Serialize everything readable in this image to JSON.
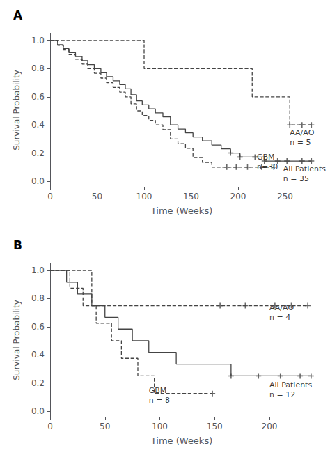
{
  "chart_data": [
    {
      "type": "step",
      "title": "A",
      "xlabel": "Time (Weeks)",
      "ylabel": "Survival Probability",
      "xlim": [
        0,
        280
      ],
      "ylim": [
        -0.04,
        1.05
      ],
      "xticks": [
        0,
        50,
        100,
        150,
        200,
        250
      ],
      "yticks": [
        {
          "value": 0,
          "label": "0.0"
        },
        0.2,
        0.4,
        0.6,
        0.8,
        {
          "value": 1,
          "label": "1.0"
        }
      ],
      "grid": false,
      "series": [
        {
          "color": "#444444",
          "line_style": "solid",
          "marker": "+",
          "x": [
            0,
            8,
            14,
            20,
            27,
            34,
            40,
            47,
            54,
            60,
            67,
            74,
            80,
            86,
            92,
            98,
            105,
            112,
            120,
            128,
            136,
            144,
            152,
            162,
            172,
            182,
            192,
            202,
            218,
            228,
            242,
            252,
            268,
            278
          ],
          "values": [
            1.0,
            0.971,
            0.943,
            0.914,
            0.886,
            0.857,
            0.829,
            0.8,
            0.771,
            0.743,
            0.714,
            0.686,
            0.657,
            0.614,
            0.571,
            0.543,
            0.514,
            0.486,
            0.457,
            0.4,
            0.371,
            0.343,
            0.314,
            0.286,
            0.257,
            0.229,
            0.2,
            0.171,
            0.171,
            0.143,
            0.143,
            0.143,
            0.143,
            0.143
          ],
          "censored": {
            "x": [
              192,
              202,
              218,
              228,
              242,
              252,
              268,
              278
            ],
            "y": [
              0.2,
              0.171,
              0.171,
              0.143,
              0.143,
              0.143,
              0.143,
              0.143
            ]
          }
        },
        {
          "color": "#444444",
          "line_style": "dashed",
          "marker": "+",
          "x": [
            0,
            8,
            14,
            20,
            27,
            34,
            40,
            47,
            54,
            60,
            67,
            74,
            80,
            86,
            92,
            98,
            105,
            112,
            120,
            128,
            136,
            144,
            152,
            162,
            172,
            182,
            188,
            198,
            210,
            225,
            238
          ],
          "values": [
            1.0,
            0.967,
            0.933,
            0.9,
            0.867,
            0.833,
            0.8,
            0.767,
            0.733,
            0.7,
            0.667,
            0.633,
            0.6,
            0.55,
            0.5,
            0.467,
            0.433,
            0.4,
            0.367,
            0.3,
            0.267,
            0.233,
            0.167,
            0.133,
            0.1,
            0.1,
            0.1,
            0.1,
            0.1,
            0.1,
            0.1
          ],
          "censored": {
            "x": [
              188,
              198,
              210,
              225,
              238
            ],
            "y": [
              0.1,
              0.1,
              0.1,
              0.1,
              0.1
            ]
          }
        },
        {
          "color": "#444444",
          "line_style": "dashed",
          "marker": "+",
          "x": [
            0,
            90,
            100,
            190,
            215,
            240,
            255,
            268,
            278
          ],
          "values": [
            1.0,
            1.0,
            0.8,
            0.8,
            0.6,
            0.6,
            0.4,
            0.4,
            0.4
          ],
          "censored": {
            "x": [
              255,
              268,
              278
            ],
            "y": [
              0.4,
              0.4,
              0.4
            ]
          }
        }
      ],
      "annotations": [
        {
          "x": 255,
          "y": 0.38,
          "text": "AA/AO\nn = 5"
        },
        {
          "x": 220,
          "y": 0.065,
          "text": "GBM\nn=30"
        },
        {
          "x": 248,
          "y": 0.12,
          "text": "All Patients\nn = 35"
        }
      ]
    },
    {
      "type": "step",
      "title": "B",
      "xlabel": "Time (Weeks)",
      "ylabel": "Survival Probability",
      "xlim": [
        0,
        240
      ],
      "ylim": [
        -0.04,
        1.05
      ],
      "xticks": [
        0,
        50,
        100,
        150,
        200
      ],
      "yticks": [
        {
          "value": 0,
          "label": "0.0"
        },
        0.2,
        0.4,
        0.6,
        0.8,
        {
          "value": 1,
          "label": "1.0"
        }
      ],
      "grid": false,
      "series": [
        {
          "color": "#444444",
          "line_style": "solid",
          "marker": "+",
          "x": [
            0,
            15,
            25,
            38,
            50,
            62,
            75,
            90,
            115,
            150,
            165,
            190,
            210,
            228,
            238
          ],
          "values": [
            1.0,
            0.917,
            0.833,
            0.75,
            0.667,
            0.583,
            0.5,
            0.417,
            0.333,
            0.333,
            0.25,
            0.25,
            0.25,
            0.25,
            0.25
          ],
          "censored": {
            "x": [
              165,
              190,
              210,
              228,
              238
            ],
            "y": [
              0.25,
              0.25,
              0.25,
              0.25,
              0.25
            ]
          }
        },
        {
          "color": "#444444",
          "line_style": "dashed",
          "marker": "+",
          "x": [
            0,
            18,
            30,
            42,
            56,
            65,
            80,
            95,
            140,
            148
          ],
          "values": [
            1.0,
            0.875,
            0.75,
            0.625,
            0.5,
            0.375,
            0.25,
            0.125,
            0.125,
            0.125
          ],
          "censored": {
            "x": [
              148
            ],
            "y": [
              0.125
            ]
          }
        },
        {
          "color": "#444444",
          "line_style": "dashed",
          "marker": "+",
          "x": [
            0,
            22,
            38,
            60,
            155,
            178,
            205,
            220,
            235
          ],
          "values": [
            1.0,
            1.0,
            0.75,
            0.75,
            0.75,
            0.75,
            0.75,
            0.75,
            0.75
          ],
          "censored": {
            "x": [
              155,
              178,
              205,
              220,
              235
            ],
            "y": [
              0.75,
              0.75,
              0.75,
              0.75,
              0.75
            ]
          }
        }
      ],
      "annotations": [
        {
          "x": 200,
          "y": 0.77,
          "text": "AA/AO\nn = 4"
        },
        {
          "x": 90,
          "y": 0.04,
          "text": "GBM\nn = 8"
        },
        {
          "x": 200,
          "y": 0.22,
          "text": "All Patients\nn = 12"
        }
      ]
    }
  ]
}
